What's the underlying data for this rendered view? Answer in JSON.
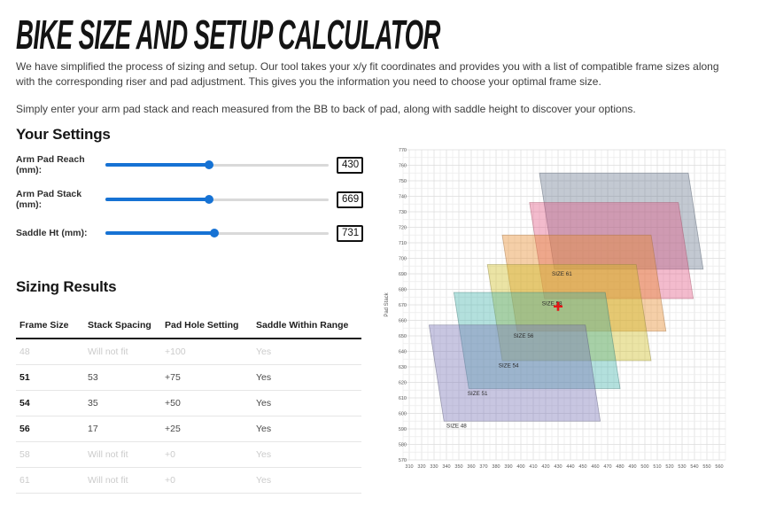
{
  "page": {
    "title": "BIKE SIZE AND SETUP CALCULATOR",
    "intro_1": "We have simplified the process of sizing and setup. Our tool takes your x/y fit coordinates and provides you with a list of compatible frame sizes along with the corresponding riser and pad adjustment. This gives you the information you need to choose your optimal frame size.",
    "intro_2": "Simply enter your arm pad stack and reach measured from the BB to back of pad, along with saddle height to discover your options."
  },
  "settings": {
    "heading": "Your Settings",
    "accent_color": "#1672d4",
    "track_color": "#d9d9d9",
    "sliders": [
      {
        "label": "Arm Pad Reach (mm):",
        "value": "430",
        "position_pct": 46.5
      },
      {
        "label": "Arm Pad Stack (mm):",
        "value": "669",
        "position_pct": 46.5
      },
      {
        "label": "Saddle Ht (mm):",
        "value": "731",
        "position_pct": 48.8
      }
    ]
  },
  "results": {
    "heading": "Sizing Results",
    "columns": [
      "Frame Size",
      "Stack Spacing",
      "Pad Hole Setting",
      "Saddle Within Range"
    ],
    "rows": [
      {
        "size": "48",
        "stack": "Will not fit",
        "pad": "+100",
        "saddle": "Yes",
        "fits": false
      },
      {
        "size": "51",
        "stack": "53",
        "pad": "+75",
        "saddle": "Yes",
        "fits": true
      },
      {
        "size": "54",
        "stack": "35",
        "pad": "+50",
        "saddle": "Yes",
        "fits": true
      },
      {
        "size": "56",
        "stack": "17",
        "pad": "+25",
        "saddle": "Yes",
        "fits": true
      },
      {
        "size": "58",
        "stack": "Will not fit",
        "pad": "+0",
        "saddle": "Yes",
        "fits": false
      },
      {
        "size": "61",
        "stack": "Will not fit",
        "pad": "+0",
        "saddle": "Yes",
        "fits": false
      }
    ]
  },
  "chart_data": {
    "type": "area",
    "title": "",
    "xlabel": "",
    "ylabel": "Pad Stack",
    "xlim": [
      310,
      560
    ],
    "ylim": [
      570,
      770
    ],
    "x_tick_step": 10,
    "y_tick_step": 10,
    "grid_step": 5,
    "grid": true,
    "user_point": {
      "x": 430,
      "y": 669,
      "color": "#e51616",
      "shape": "cross"
    },
    "regions": [
      {
        "label": "SIZE 61",
        "label_pos": [
          425,
          690
        ],
        "polygon": [
          [
            427,
            693
          ],
          [
            547,
            693
          ],
          [
            535,
            755
          ],
          [
            415,
            755
          ]
        ],
        "fill": "rgba(98,112,138,0.38)",
        "stroke": "rgba(90,100,115,0.55)"
      },
      {
        "label": "SIZE 58",
        "label_pos": [
          417,
          671
        ],
        "polygon": [
          [
            419,
            674
          ],
          [
            539,
            674
          ],
          [
            527,
            736
          ],
          [
            407,
            736
          ]
        ],
        "fill": "rgba(226,84,130,0.40)",
        "stroke": "rgba(160,80,100,0.5)"
      },
      {
        "label": "SIZE 56",
        "label_pos": [
          394,
          650
        ],
        "polygon": [
          [
            397,
            653
          ],
          [
            517,
            653
          ],
          [
            505,
            715
          ],
          [
            385,
            715
          ]
        ],
        "fill": "rgba(232,141,48,0.42)",
        "stroke": "rgba(160,110,60,0.5)"
      },
      {
        "label": "SIZE 54",
        "label_pos": [
          382,
          631
        ],
        "polygon": [
          [
            385,
            634
          ],
          [
            505,
            634
          ],
          [
            493,
            696
          ],
          [
            373,
            696
          ]
        ],
        "fill": "rgba(208,190,41,0.42)",
        "stroke": "rgba(140,130,60,0.5)"
      },
      {
        "label": "SIZE 51",
        "label_pos": [
          357,
          613
        ],
        "polygon": [
          [
            358,
            616
          ],
          [
            480,
            616
          ],
          [
            468,
            678
          ],
          [
            346,
            678
          ]
        ],
        "fill": "rgba(64,178,170,0.40)",
        "stroke": "rgba(60,120,115,0.5)"
      },
      {
        "label": "SIZE 48",
        "label_pos": [
          340,
          592
        ],
        "polygon": [
          [
            338,
            595
          ],
          [
            464,
            595
          ],
          [
            452,
            657
          ],
          [
            326,
            657
          ]
        ],
        "fill": "rgba(124,119,183,0.42)",
        "stroke": "rgba(90,90,120,0.5)"
      }
    ]
  }
}
